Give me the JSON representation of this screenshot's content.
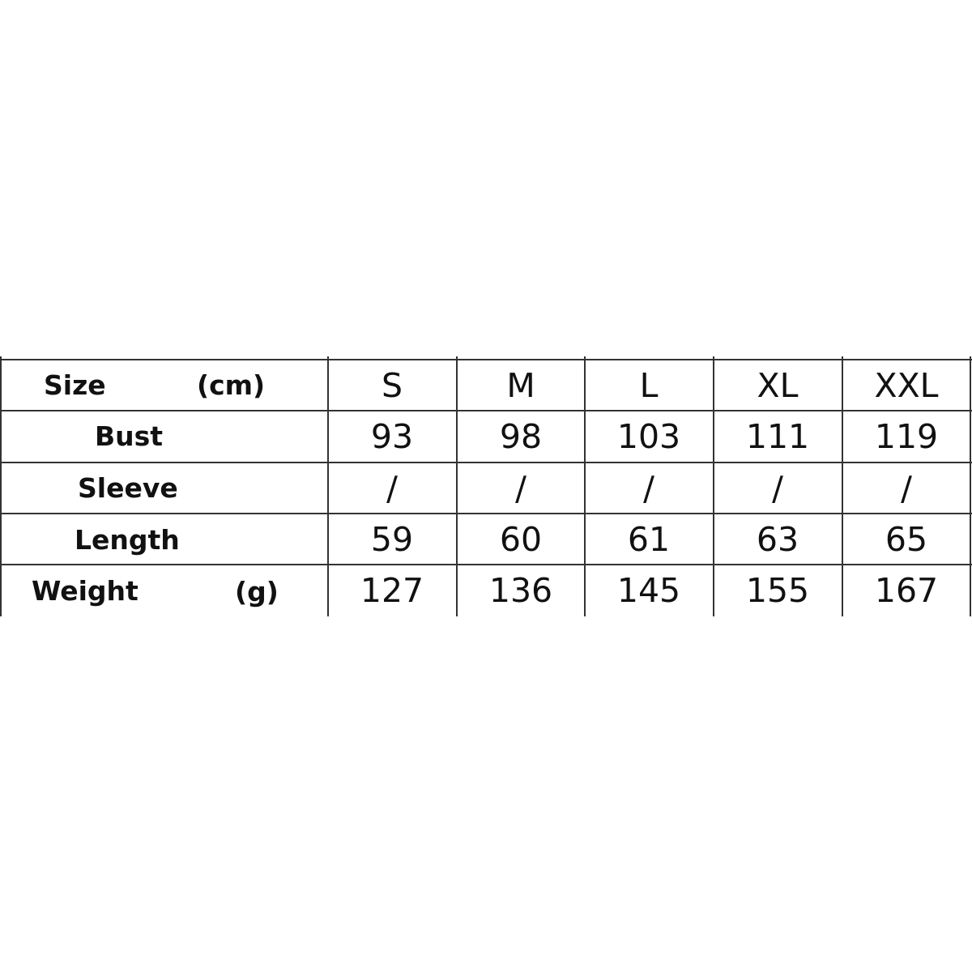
{
  "table": {
    "header": {
      "label": "Size",
      "unit": "(cm)",
      "sizes": [
        "S",
        "M",
        "L",
        "XL",
        "XXL"
      ]
    },
    "rows": [
      {
        "label": "Bust",
        "unit": "",
        "values": [
          "93",
          "98",
          "103",
          "111",
          "119"
        ]
      },
      {
        "label": "Sleeve",
        "unit": "",
        "values": [
          "/",
          "/",
          "/",
          "/",
          "/"
        ]
      },
      {
        "label": "Length",
        "unit": "",
        "values": [
          "59",
          "60",
          "61",
          "63",
          "65"
        ]
      },
      {
        "label": "Weight",
        "unit": "(g)",
        "values": [
          "127",
          "136",
          "145",
          "155",
          "167"
        ]
      }
    ]
  }
}
